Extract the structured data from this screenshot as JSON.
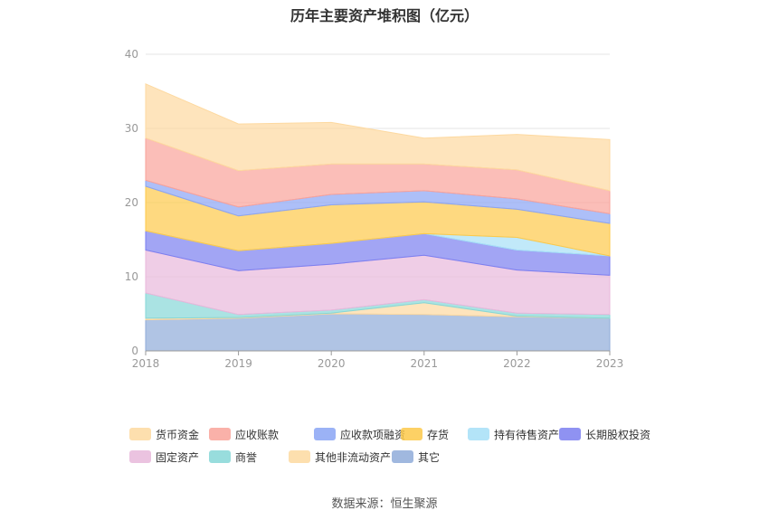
{
  "chart_data": {
    "type": "area",
    "title": "历年主要资产堆积图（亿元）",
    "x": [
      "2018",
      "2019",
      "2020",
      "2021",
      "2022",
      "2023"
    ],
    "ylim": [
      0,
      40
    ],
    "yticks": [
      "0",
      "10",
      "20",
      "30",
      "40"
    ],
    "grid": true,
    "legend_position": "bottom",
    "series": [
      {
        "name": "其它",
        "color": "#8fabd9",
        "values": [
          4.2,
          4.4,
          5.0,
          4.9,
          4.6,
          4.4
        ]
      },
      {
        "name": "其他非流动资产",
        "color": "#fdd9a0",
        "values": [
          0.2,
          0.1,
          0.1,
          1.6,
          0.1,
          0.0
        ]
      },
      {
        "name": "商誉",
        "color": "#86d7d7",
        "values": [
          3.4,
          0.4,
          0.4,
          0.4,
          0.4,
          0.5
        ]
      },
      {
        "name": "固定资产",
        "color": "#e8b8db",
        "values": [
          5.8,
          5.9,
          6.2,
          6.0,
          5.8,
          5.3
        ]
      },
      {
        "name": "长期股权投资",
        "color": "#7b7ff0",
        "values": [
          2.6,
          2.7,
          2.8,
          2.9,
          2.7,
          2.6
        ]
      },
      {
        "name": "持有待售资产",
        "color": "#a6dff7",
        "values": [
          0.0,
          0.0,
          0.0,
          0.0,
          1.7,
          0.0
        ]
      },
      {
        "name": "存货",
        "color": "#fdc94a",
        "values": [
          6.0,
          4.7,
          5.2,
          4.3,
          3.8,
          4.4
        ]
      },
      {
        "name": "应收款项融资",
        "color": "#8aa4f5",
        "values": [
          0.8,
          1.2,
          1.4,
          1.5,
          1.4,
          1.3
        ]
      },
      {
        "name": "应收账款",
        "color": "#f9a39a",
        "values": [
          5.7,
          4.9,
          4.1,
          3.6,
          3.9,
          3.1
        ]
      },
      {
        "name": "货币资金",
        "color": "#fdd9a0",
        "values": [
          7.3,
          6.3,
          5.6,
          3.5,
          4.8,
          6.9
        ]
      }
    ]
  },
  "legend_order": [
    "货币资金",
    "应收账款",
    "应收款项融资",
    "存货",
    "持有待售资产",
    "长期股权投资",
    "固定资产",
    "商誉",
    "其他非流动资产",
    "其它"
  ],
  "footer": {
    "source": "数据来源：恒生聚源"
  }
}
